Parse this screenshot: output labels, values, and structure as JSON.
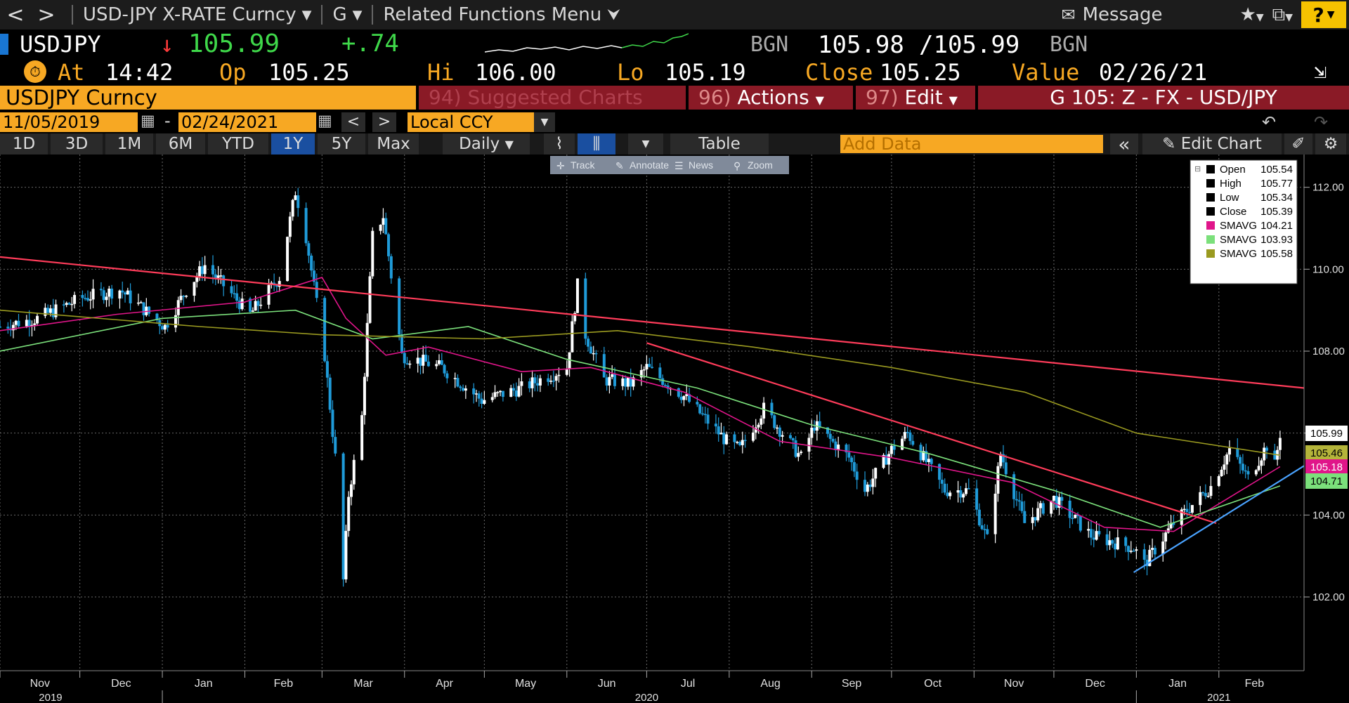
{
  "toolbar": {
    "back": "<",
    "fwd": ">",
    "security_menu": "USD-JPY X-RATE Curncy",
    "function_menu": "G",
    "related": "Related Functions Menu",
    "message": "Message",
    "help": "?"
  },
  "quote": {
    "ticker": "USDJPY",
    "arrow": "↓",
    "last": "105.99",
    "change": "+.74",
    "bid_src": "BGN",
    "bid": "105.98",
    "ask": "/105.99",
    "ask_src": "BGN"
  },
  "stats": {
    "at_label": "At",
    "at": "14:42",
    "op_label": "Op",
    "op": "105.25",
    "hi_label": "Hi",
    "hi": "106.00",
    "lo_label": "Lo",
    "lo": "105.19",
    "close_label": "Close",
    "close": "105.25",
    "value_label": "Value",
    "value": "02/26/21"
  },
  "header": {
    "security": "USDJPY Curncy",
    "suggested_num": "94)",
    "suggested": "Suggested Charts",
    "actions_num": "96)",
    "actions": "Actions",
    "edit_num": "97)",
    "edit": "Edit",
    "chart_id": "G 105: Z - FX - USD/JPY"
  },
  "range": {
    "start": "11/05/2019",
    "dash": "-",
    "end": "02/24/2021",
    "prev": "<",
    "next": ">",
    "currency": "Local CCY"
  },
  "periods": [
    "1D",
    "3D",
    "1M",
    "6M",
    "YTD",
    "1Y",
    "5Y",
    "Max"
  ],
  "active_period": "1Y",
  "controls": {
    "frequency": "Daily",
    "table": "Table",
    "add_data_placeholder": "Add Data",
    "collapse": "«",
    "edit_chart": "Edit Chart"
  },
  "tools": [
    "Track",
    "Annotate",
    "News",
    "Zoom"
  ],
  "legend": [
    {
      "label": "Open",
      "value": "105.54",
      "color": "#000000"
    },
    {
      "label": "High",
      "value": "105.77",
      "color": "#000000"
    },
    {
      "label": "Low",
      "value": "105.34",
      "color": "#000000"
    },
    {
      "label": "Close",
      "value": "105.39",
      "color": "#000000"
    },
    {
      "label": "SMAVG",
      "value": "104.21",
      "color": "#e0158a"
    },
    {
      "label": "SMAVG",
      "value": "103.93",
      "color": "#7be07b"
    },
    {
      "label": "SMAVG",
      "value": "105.58",
      "color": "#9a9a20"
    }
  ],
  "right_tags": [
    {
      "value": "105.99",
      "bg": "#ffffff",
      "fg": "#000000"
    },
    {
      "value": "105.46",
      "bg": "#b5b53a",
      "fg": "#000000"
    },
    {
      "value": "105.18",
      "bg": "#e0158a",
      "fg": "#ffffff"
    },
    {
      "value": "104.71",
      "bg": "#7be07b",
      "fg": "#000000"
    }
  ],
  "colors": {
    "accent_orange": "#f7a823",
    "header_red": "#8a1a26",
    "up": "#ffffff",
    "down": "#1f9bd9",
    "trend_red": "#ff3c5a",
    "trend_blue": "#4aa3ff",
    "positive": "#3fd84a",
    "negative": "#ff4040"
  },
  "chart_data": {
    "type": "line",
    "title": "USDJPY Curncy",
    "ylim": [
      100.2,
      112.8
    ],
    "yticks": [
      102,
      104,
      106,
      108,
      110,
      112
    ],
    "ytick_labels": [
      "102.00",
      "104.00",
      "106.00",
      "108.00",
      "110.00",
      "112.00"
    ],
    "xlim": [
      "2019-11-01",
      "2021-03-05"
    ],
    "month_ticks": [
      {
        "date": "2019-11-01",
        "label": "Nov"
      },
      {
        "date": "2019-12-01",
        "label": "Dec"
      },
      {
        "date": "2020-01-01",
        "label": "Jan"
      },
      {
        "date": "2020-02-01",
        "label": "Feb"
      },
      {
        "date": "2020-03-01",
        "label": "Mar"
      },
      {
        "date": "2020-04-01",
        "label": "Apr"
      },
      {
        "date": "2020-05-01",
        "label": "May"
      },
      {
        "date": "2020-06-01",
        "label": "Jun"
      },
      {
        "date": "2020-07-01",
        "label": "Jul"
      },
      {
        "date": "2020-08-01",
        "label": "Aug"
      },
      {
        "date": "2020-09-01",
        "label": "Sep"
      },
      {
        "date": "2020-10-01",
        "label": "Oct"
      },
      {
        "date": "2020-11-01",
        "label": "Nov"
      },
      {
        "date": "2020-12-01",
        "label": "Dec"
      },
      {
        "date": "2021-01-01",
        "label": "Jan"
      },
      {
        "date": "2021-02-01",
        "label": "Feb"
      }
    ],
    "year_labels": [
      {
        "date": "2019-11-20",
        "label": "2019"
      },
      {
        "date": "2020-07-01",
        "label": "2020"
      },
      {
        "date": "2021-02-01",
        "label": "2021"
      }
    ],
    "close_series": {
      "name": "Close",
      "x": [
        "2019-11-01",
        "2019-11-15",
        "2019-12-02",
        "2019-12-16",
        "2020-01-02",
        "2020-01-10",
        "2020-01-17",
        "2020-02-03",
        "2020-02-14",
        "2020-02-20",
        "2020-02-24",
        "2020-03-02",
        "2020-03-06",
        "2020-03-09",
        "2020-03-11",
        "2020-03-16",
        "2020-03-20",
        "2020-03-24",
        "2020-03-31",
        "2020-04-15",
        "2020-04-30",
        "2020-05-15",
        "2020-06-01",
        "2020-06-05",
        "2020-06-08",
        "2020-06-15",
        "2020-06-25",
        "2020-07-01",
        "2020-07-15",
        "2020-07-31",
        "2020-08-05",
        "2020-08-14",
        "2020-08-28",
        "2020-09-02",
        "2020-09-15",
        "2020-09-21",
        "2020-10-01",
        "2020-10-07",
        "2020-10-21",
        "2020-10-30",
        "2020-11-06",
        "2020-11-11",
        "2020-11-20",
        "2020-12-01",
        "2020-12-15",
        "2020-12-31",
        "2021-01-04",
        "2021-01-15",
        "2021-01-29",
        "2021-02-05",
        "2021-02-12",
        "2021-02-19",
        "2021-02-22",
        "2021-02-24"
      ],
      "y": [
        108.6,
        108.8,
        109.3,
        109.5,
        108.6,
        109.5,
        110.1,
        108.9,
        109.8,
        111.9,
        110.8,
        107.9,
        105.4,
        102.4,
        104.5,
        106.4,
        110.8,
        111.3,
        107.9,
        107.6,
        106.8,
        107.1,
        107.6,
        109.6,
        108.4,
        107.3,
        107.2,
        107.6,
        106.9,
        105.8,
        105.6,
        106.6,
        105.4,
        106.2,
        105.4,
        104.6,
        105.6,
        106.0,
        104.6,
        104.6,
        103.4,
        105.5,
        103.8,
        104.4,
        103.5,
        103.2,
        102.8,
        103.8,
        104.7,
        105.6,
        104.9,
        105.7,
        105.2,
        105.99
      ]
    },
    "overlay_series": [
      {
        "name": "SMAVG",
        "color": "#e0158a",
        "x": [
          "2019-11-01",
          "2019-12-15",
          "2020-02-01",
          "2020-03-01",
          "2020-03-10",
          "2020-03-25",
          "2020-04-10",
          "2020-05-15",
          "2020-06-10",
          "2020-07-15",
          "2020-08-20",
          "2020-10-01",
          "2020-11-15",
          "2020-12-20",
          "2021-01-15",
          "2021-02-24"
        ],
        "y": [
          108.5,
          108.9,
          109.2,
          109.8,
          108.8,
          107.9,
          108.1,
          107.5,
          107.6,
          107.0,
          105.8,
          105.4,
          104.8,
          103.7,
          103.6,
          105.18
        ]
      },
      {
        "name": "SMAVG",
        "color": "#7be07b",
        "x": [
          "2019-11-01",
          "2020-01-01",
          "2020-02-20",
          "2020-03-20",
          "2020-04-25",
          "2020-06-01",
          "2020-07-20",
          "2020-09-01",
          "2020-10-15",
          "2020-12-01",
          "2021-01-10",
          "2021-02-24"
        ],
        "y": [
          108.0,
          108.8,
          109.0,
          108.3,
          108.6,
          107.8,
          107.1,
          106.2,
          105.5,
          104.6,
          103.7,
          104.71
        ]
      },
      {
        "name": "SMAVG",
        "color": "#9a9a20",
        "x": [
          "2019-11-01",
          "2020-01-15",
          "2020-03-01",
          "2020-05-01",
          "2020-06-20",
          "2020-08-10",
          "2020-10-01",
          "2020-11-20",
          "2021-01-01",
          "2021-02-24"
        ],
        "y": [
          109.0,
          108.6,
          108.4,
          108.3,
          108.5,
          108.1,
          107.6,
          107.0,
          106.0,
          105.46
        ]
      }
    ],
    "trendlines": [
      {
        "color": "#ff3c5a",
        "x": [
          "2019-11-01",
          "2021-03-05"
        ],
        "y": [
          110.3,
          107.1
        ]
      },
      {
        "color": "#ff3c5a",
        "x": [
          "2020-07-01",
          "2021-01-31"
        ],
        "y": [
          108.2,
          103.8
        ]
      },
      {
        "color": "#4aa3ff",
        "x": [
          "2020-12-31",
          "2021-03-05"
        ],
        "y": [
          102.6,
          105.2
        ]
      }
    ],
    "grid": true,
    "legend_position": "top-right"
  }
}
